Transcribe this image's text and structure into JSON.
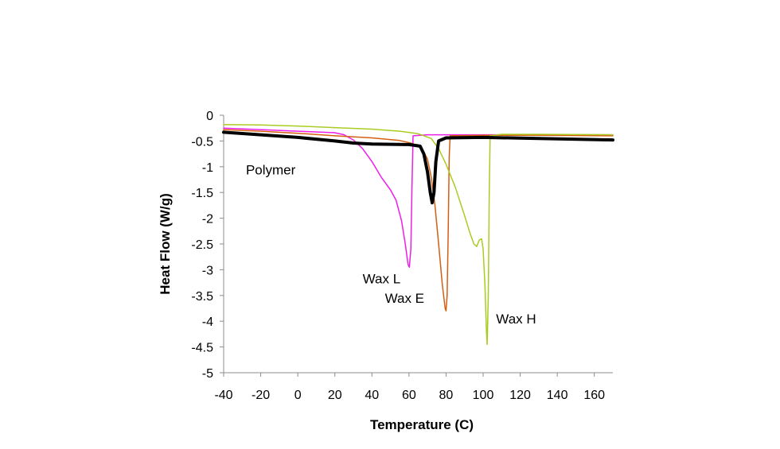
{
  "chart_data": {
    "type": "line",
    "title": "",
    "xlabel": "Temperature (C)",
    "ylabel": "Heat Flow (W/g)",
    "xlim": [
      -40,
      170
    ],
    "ylim": [
      -5,
      0
    ],
    "x_ticks": [
      -40,
      -20,
      0,
      20,
      40,
      60,
      80,
      100,
      120,
      140,
      160
    ],
    "y_ticks": [
      0,
      -0.5,
      -1,
      -1.5,
      -2,
      -2.5,
      -3,
      -3.5,
      -4,
      -4.5,
      -5
    ],
    "x_tick_labels": [
      "-40",
      "-20",
      "0",
      "20",
      "40",
      "60",
      "80",
      "100",
      "120",
      "140",
      "160"
    ],
    "y_tick_labels": [
      "0",
      "-0.5",
      "-1",
      "-1.5",
      "-2",
      "-2.5",
      "-3",
      "-3.5",
      "-4",
      "-4.5",
      "-5"
    ],
    "grid": false,
    "legend": "none",
    "series": [
      {
        "name": "Polymer",
        "color": "#000000",
        "stroke_width": 4,
        "points": [
          [
            -40,
            -0.33
          ],
          [
            -20,
            -0.38
          ],
          [
            0,
            -0.43
          ],
          [
            20,
            -0.5
          ],
          [
            30,
            -0.54
          ],
          [
            40,
            -0.56
          ],
          [
            60,
            -0.57
          ],
          [
            66,
            -0.6
          ],
          [
            68,
            -0.75
          ],
          [
            70,
            -1.1
          ],
          [
            71.5,
            -1.5
          ],
          [
            72.5,
            -1.7
          ],
          [
            73.5,
            -1.5
          ],
          [
            74.5,
            -0.9
          ],
          [
            76,
            -0.5
          ],
          [
            80,
            -0.44
          ],
          [
            100,
            -0.43
          ],
          [
            130,
            -0.45
          ],
          [
            170,
            -0.48
          ]
        ]
      },
      {
        "name": "Wax L",
        "color": "#ee1ee8",
        "stroke_width": 1.5,
        "points": [
          [
            -40,
            -0.25
          ],
          [
            -20,
            -0.28
          ],
          [
            0,
            -0.31
          ],
          [
            20,
            -0.34
          ],
          [
            25,
            -0.38
          ],
          [
            30,
            -0.48
          ],
          [
            35,
            -0.65
          ],
          [
            40,
            -0.9
          ],
          [
            45,
            -1.2
          ],
          [
            50,
            -1.45
          ],
          [
            53,
            -1.65
          ],
          [
            56,
            -2.05
          ],
          [
            58,
            -2.5
          ],
          [
            59.5,
            -2.9
          ],
          [
            60.2,
            -2.95
          ],
          [
            61,
            -2.6
          ],
          [
            61.6,
            -1.4
          ],
          [
            62.2,
            -0.4
          ],
          [
            70,
            -0.38
          ],
          [
            100,
            -0.38
          ],
          [
            130,
            -0.38
          ],
          [
            170,
            -0.38
          ]
        ]
      },
      {
        "name": "Wax E",
        "color": "#d45f10",
        "stroke_width": 1.5,
        "points": [
          [
            -40,
            -0.28
          ],
          [
            -20,
            -0.31
          ],
          [
            0,
            -0.35
          ],
          [
            20,
            -0.4
          ],
          [
            40,
            -0.44
          ],
          [
            55,
            -0.49
          ],
          [
            62,
            -0.55
          ],
          [
            67,
            -0.65
          ],
          [
            70,
            -0.85
          ],
          [
            72,
            -1.2
          ],
          [
            74,
            -1.75
          ],
          [
            76,
            -2.5
          ],
          [
            78,
            -3.3
          ],
          [
            79.5,
            -3.75
          ],
          [
            80,
            -3.8
          ],
          [
            80.6,
            -3.5
          ],
          [
            81.2,
            -2.2
          ],
          [
            81.7,
            -0.8
          ],
          [
            82.2,
            -0.4
          ],
          [
            100,
            -0.39
          ],
          [
            130,
            -0.39
          ],
          [
            170,
            -0.4
          ]
        ]
      },
      {
        "name": "Wax H",
        "color": "#aacc22",
        "stroke_width": 1.5,
        "points": [
          [
            -40,
            -0.18
          ],
          [
            -20,
            -0.19
          ],
          [
            0,
            -0.21
          ],
          [
            20,
            -0.24
          ],
          [
            40,
            -0.27
          ],
          [
            55,
            -0.31
          ],
          [
            65,
            -0.36
          ],
          [
            72,
            -0.45
          ],
          [
            76,
            -0.65
          ],
          [
            80,
            -0.95
          ],
          [
            85,
            -1.4
          ],
          [
            90,
            -1.95
          ],
          [
            93,
            -2.3
          ],
          [
            95,
            -2.5
          ],
          [
            96.5,
            -2.55
          ],
          [
            98,
            -2.42
          ],
          [
            99.2,
            -2.4
          ],
          [
            100,
            -2.6
          ],
          [
            101,
            -3.3
          ],
          [
            101.8,
            -4.2
          ],
          [
            102.2,
            -4.45
          ],
          [
            102.8,
            -3.5
          ],
          [
            103.3,
            -1.5
          ],
          [
            103.8,
            -0.4
          ],
          [
            110,
            -0.37
          ],
          [
            130,
            -0.37
          ],
          [
            170,
            -0.38
          ]
        ]
      }
    ],
    "annotations": [
      {
        "series": "Polymer",
        "text": "Polymer",
        "x": -28,
        "y": -1.06
      },
      {
        "series": "Wax L",
        "text": "Wax L",
        "x": 35,
        "y": -3.17
      },
      {
        "series": "Wax E",
        "text": "Wax E",
        "x": 47,
        "y": -3.55
      },
      {
        "series": "Wax H",
        "text": "Wax H",
        "x": 107,
        "y": -3.95
      }
    ]
  }
}
